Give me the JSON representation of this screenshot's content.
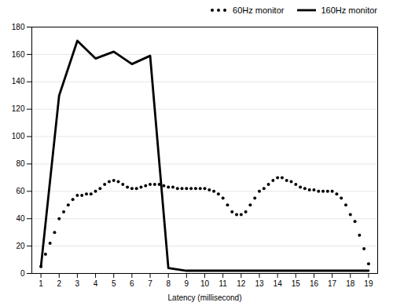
{
  "chart_data": {
    "type": "line",
    "xlabel": "Latency (millisecond)",
    "xlim": [
      0.5,
      19.5
    ],
    "xticks": [
      1,
      2,
      3,
      4,
      5,
      6,
      7,
      8,
      9,
      10,
      11,
      12,
      13,
      14,
      15,
      16,
      17,
      18,
      19
    ],
    "ylim": [
      0,
      180
    ],
    "yticks": [
      0,
      20,
      40,
      60,
      80,
      100,
      120,
      140,
      160,
      180
    ],
    "grid": "y",
    "legend": "upper right",
    "series": [
      {
        "name": "60Hz monitor",
        "color": "black",
        "marker": "o",
        "line_style": "none",
        "x": [
          1,
          1.25,
          1.5,
          1.75,
          2,
          2.25,
          2.5,
          2.75,
          3,
          3.25,
          3.5,
          3.75,
          4,
          4.25,
          4.5,
          4.75,
          5,
          5.25,
          5.5,
          5.75,
          6,
          6.25,
          6.5,
          6.75,
          7,
          7.25,
          7.5,
          7.75,
          8,
          8.25,
          8.5,
          8.75,
          9,
          9.25,
          9.5,
          9.75,
          10,
          10.25,
          10.5,
          10.75,
          11,
          11.25,
          11.5,
          11.75,
          12,
          12.25,
          12.5,
          12.75,
          13,
          13.25,
          13.5,
          13.75,
          14,
          14.25,
          14.5,
          14.75,
          15,
          15.25,
          15.5,
          15.75,
          16,
          16.25,
          16.5,
          16.75,
          17,
          17.25,
          17.5,
          17.75,
          18,
          18.25,
          18.5,
          18.75,
          19
        ],
        "values": [
          5,
          14,
          22,
          30,
          40,
          45,
          50,
          54,
          57,
          57,
          58,
          58,
          60,
          62,
          65,
          67,
          68,
          67,
          65,
          63,
          62,
          62,
          63,
          64,
          65,
          65,
          65,
          64,
          63,
          63,
          62,
          62,
          62,
          62,
          62,
          62,
          62,
          61,
          60,
          58,
          55,
          50,
          45,
          43,
          43,
          45,
          50,
          55,
          60,
          62,
          65,
          68,
          70,
          70,
          68,
          67,
          65,
          63,
          62,
          61,
          61,
          60,
          60,
          60,
          60,
          58,
          55,
          50,
          43,
          38,
          28,
          18,
          7
        ]
      },
      {
        "name": "160Hz monitor",
        "color": "black",
        "marker": "none",
        "line_style": "solid",
        "x": [
          1,
          2,
          3,
          4,
          5,
          6,
          7,
          8,
          9,
          10,
          11,
          12,
          13,
          14,
          15,
          16,
          17,
          18,
          19
        ],
        "values": [
          5,
          130,
          170,
          157,
          162,
          153,
          159,
          4,
          2,
          2,
          2,
          2,
          2,
          2,
          2,
          2,
          2,
          2,
          2
        ]
      }
    ]
  }
}
